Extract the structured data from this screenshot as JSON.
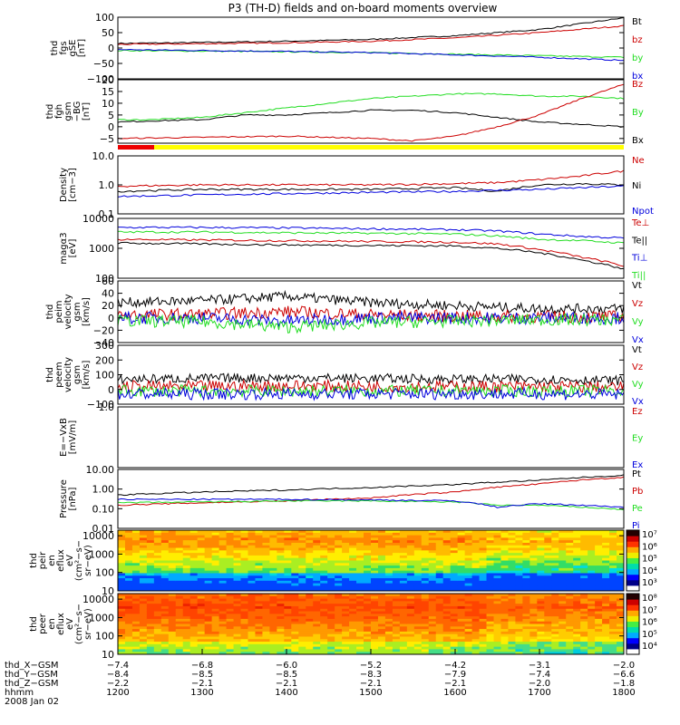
{
  "title": "P3 (TH-D) fields and on-board moments overview",
  "colors": {
    "black": "#000000",
    "red": "#cc0000",
    "green": "#22dd22",
    "blue": "#0000dd",
    "yellow": "#ffff00"
  },
  "chart_data": [
    {
      "type": "line",
      "panel": "fgs_gse",
      "ylabel_lines": [
        "thd",
        "fgs",
        "gSE",
        "[nT]"
      ],
      "ylim": [
        -100,
        100
      ],
      "yticks": [
        {
          "v": 100,
          "l": "100"
        },
        {
          "v": 50,
          "l": "50"
        },
        {
          "v": 0,
          "l": "0"
        },
        {
          "v": -50,
          "l": "−50"
        },
        {
          "v": -100,
          "l": "−100"
        }
      ],
      "legend": [
        {
          "label": "Bt",
          "color": "black"
        },
        {
          "label": "bz",
          "color": "red"
        },
        {
          "label": "by",
          "color": "green"
        },
        {
          "label": "bx",
          "color": "blue"
        }
      ],
      "series": [
        {
          "name": "Bt",
          "color": "black",
          "x": [
            1200,
            1300,
            1400,
            1500,
            1600,
            1700,
            1800
          ],
          "y": [
            15,
            18,
            22,
            28,
            40,
            60,
            98
          ]
        },
        {
          "name": "bz",
          "color": "red",
          "x": [
            1200,
            1300,
            1400,
            1500,
            1600,
            1700,
            1800
          ],
          "y": [
            12,
            14,
            17,
            22,
            33,
            50,
            72
          ]
        },
        {
          "name": "by",
          "color": "green",
          "x": [
            1200,
            1300,
            1400,
            1500,
            1600,
            1700,
            1800
          ],
          "y": [
            -8,
            -10,
            -12,
            -15,
            -20,
            -25,
            -30
          ]
        },
        {
          "name": "bx",
          "color": "blue",
          "x": [
            1200,
            1300,
            1400,
            1500,
            1600,
            1700,
            1800
          ],
          "y": [
            -5,
            -8,
            -11,
            -15,
            -22,
            -30,
            -40
          ]
        }
      ]
    },
    {
      "type": "line",
      "panel": "fgh_gsm",
      "ylabel_lines": [
        "thd",
        "fgh",
        "gsm",
        "−BG",
        "[nT]"
      ],
      "ylim": [
        -7,
        20
      ],
      "yticks": [
        {
          "v": 20,
          "l": "20"
        },
        {
          "v": 15,
          "l": "15"
        },
        {
          "v": 10,
          "l": "10"
        },
        {
          "v": 5,
          "l": "5"
        },
        {
          "v": 0,
          "l": "0"
        },
        {
          "v": -5,
          "l": "−5"
        }
      ],
      "legend": [
        {
          "label": "Bz",
          "color": "red"
        },
        {
          "label": "By",
          "color": "green"
        },
        {
          "label": "Bx",
          "color": "black"
        }
      ],
      "series": [
        {
          "name": "By",
          "color": "green",
          "x": [
            1200,
            1240,
            1300,
            1350,
            1400,
            1450,
            1500,
            1550,
            1600,
            1650,
            1700,
            1750,
            1800
          ],
          "y": [
            3,
            3,
            4,
            6,
            8,
            10,
            12,
            13,
            14,
            14,
            13,
            13,
            12
          ]
        },
        {
          "name": "Bx",
          "color": "black",
          "x": [
            1200,
            1240,
            1300,
            1350,
            1400,
            1450,
            1500,
            1550,
            1600,
            1650,
            1700,
            1750,
            1800
          ],
          "y": [
            2,
            2.5,
            3,
            5,
            5,
            6,
            7,
            7,
            6,
            4,
            2,
            1,
            0
          ]
        },
        {
          "name": "Bz",
          "color": "red",
          "x": [
            1200,
            1300,
            1400,
            1500,
            1550,
            1600,
            1650,
            1700,
            1750,
            1800
          ],
          "y": [
            -5,
            -4.5,
            -4,
            -5,
            -6,
            -4,
            0,
            5,
            12,
            18
          ]
        }
      ]
    },
    {
      "type": "line",
      "panel": "density",
      "ylabel_lines": [
        "Density",
        "[cm−3]"
      ],
      "scale": "log",
      "ylim": [
        0.1,
        10
      ],
      "yticks": [
        {
          "v": 10,
          "l": "10.0"
        },
        {
          "v": 1,
          "l": "1.0"
        },
        {
          "v": 0.1,
          "l": "0.1"
        }
      ],
      "legend": [
        {
          "label": "Ne",
          "color": "red"
        },
        {
          "label": "Ni",
          "color": "black"
        },
        {
          "label": "Npot",
          "color": "blue"
        }
      ],
      "series": [
        {
          "name": "Ne",
          "color": "red",
          "x": [
            1200,
            1300,
            1400,
            1500,
            1600,
            1650,
            1700,
            1750,
            1800
          ],
          "y": [
            0.9,
            1.0,
            1.0,
            1.0,
            1.1,
            1.2,
            1.5,
            2.0,
            3.0
          ]
        },
        {
          "name": "Ni",
          "color": "black",
          "x": [
            1200,
            1300,
            1400,
            1500,
            1600,
            1650,
            1700,
            1750,
            1800
          ],
          "y": [
            0.6,
            0.7,
            0.7,
            0.7,
            0.8,
            0.6,
            1.0,
            1.1,
            1.0
          ]
        },
        {
          "name": "Npot",
          "color": "blue",
          "x": [
            1200,
            1300,
            1400,
            1500,
            1600,
            1700,
            1800
          ],
          "y": [
            0.4,
            0.45,
            0.5,
            0.55,
            0.6,
            0.7,
            0.9
          ]
        }
      ]
    },
    {
      "type": "line",
      "panel": "temperature",
      "ylabel_lines": [
        "magα3",
        "[eV]"
      ],
      "scale": "log",
      "ylim": [
        100,
        10000
      ],
      "yticks": [
        {
          "v": 10000,
          "l": "10000"
        },
        {
          "v": 1000,
          "l": "1000"
        },
        {
          "v": 100,
          "l": "100"
        }
      ],
      "legend": [
        {
          "label": "Te⊥",
          "color": "red"
        },
        {
          "label": "Te||",
          "color": "black"
        },
        {
          "label": "Ti⊥",
          "color": "blue"
        },
        {
          "label": "Ti||",
          "color": "green"
        }
      ],
      "series": [
        {
          "name": "Ti⊥",
          "color": "blue",
          "x": [
            1200,
            1300,
            1400,
            1500,
            1600,
            1650,
            1700,
            1750,
            1800
          ],
          "y": [
            5000,
            5000,
            4800,
            4500,
            4200,
            3800,
            3000,
            2500,
            2200
          ]
        },
        {
          "name": "Ti||",
          "color": "green",
          "x": [
            1200,
            1300,
            1400,
            1500,
            1600,
            1650,
            1700,
            1750,
            1800
          ],
          "y": [
            3500,
            3500,
            3300,
            3200,
            3000,
            2600,
            2000,
            1800,
            1500
          ]
        },
        {
          "name": "Te⊥",
          "color": "red",
          "x": [
            1200,
            1300,
            1400,
            1500,
            1600,
            1650,
            1700,
            1750,
            1800
          ],
          "y": [
            2000,
            1900,
            1800,
            1700,
            1600,
            1400,
            900,
            500,
            250
          ]
        },
        {
          "name": "Te||",
          "color": "black",
          "x": [
            1200,
            1300,
            1400,
            1500,
            1600,
            1650,
            1700,
            1750,
            1800
          ],
          "y": [
            1500,
            1400,
            1300,
            1250,
            1200,
            1000,
            700,
            400,
            200
          ]
        }
      ]
    },
    {
      "type": "line",
      "panel": "peim_velocity",
      "ylabel_lines": [
        "thd",
        "peim",
        "velocity",
        "gsm",
        "[km/s]"
      ],
      "ylim": [
        -40,
        60
      ],
      "yticks": [
        {
          "v": 60,
          "l": "60"
        },
        {
          "v": 40,
          "l": "40"
        },
        {
          "v": 20,
          "l": "20"
        },
        {
          "v": 0,
          "l": "0"
        },
        {
          "v": -20,
          "l": "−20"
        },
        {
          "v": -40,
          "l": "−40"
        }
      ],
      "legend": [
        {
          "label": "Vt",
          "color": "black"
        },
        {
          "label": "Vz",
          "color": "red"
        },
        {
          "label": "Vy",
          "color": "green"
        },
        {
          "label": "Vx",
          "color": "blue"
        }
      ],
      "series": [
        {
          "name": "Vt",
          "color": "black",
          "x": [
            1200,
            1300,
            1400,
            1500,
            1600,
            1700,
            1800
          ],
          "y": [
            25,
            28,
            35,
            25,
            20,
            15,
            15
          ]
        },
        {
          "name": "Vz",
          "color": "red",
          "x": [
            1200,
            1300,
            1400,
            1500,
            1600,
            1700,
            1800
          ],
          "y": [
            5,
            6,
            10,
            5,
            3,
            2,
            2
          ]
        },
        {
          "name": "Vx",
          "color": "blue",
          "x": [
            1200,
            1300,
            1400,
            1500,
            1600,
            1700,
            1800
          ],
          "y": [
            0,
            0,
            -5,
            0,
            0,
            0,
            0
          ]
        },
        {
          "name": "Vy",
          "color": "green",
          "x": [
            1200,
            1300,
            1400,
            1500,
            1600,
            1700,
            1800
          ],
          "y": [
            -5,
            -6,
            -15,
            -8,
            -5,
            -3,
            -3
          ]
        }
      ]
    },
    {
      "type": "line",
      "panel": "peem_velocity",
      "ylabel_lines": [
        "thd",
        "peem",
        "velocity",
        "gsm",
        "[km/s]"
      ],
      "ylim": [
        -100,
        300
      ],
      "yticks": [
        {
          "v": 300,
          "l": "300"
        },
        {
          "v": 200,
          "l": "200"
        },
        {
          "v": 100,
          "l": "100"
        },
        {
          "v": 0,
          "l": "0"
        },
        {
          "v": -100,
          "l": "−100"
        }
      ],
      "legend": [
        {
          "label": "Vt",
          "color": "black"
        },
        {
          "label": "Vz",
          "color": "red"
        },
        {
          "label": "Vy",
          "color": "green"
        },
        {
          "label": "Vx",
          "color": "blue"
        }
      ],
      "series": [
        {
          "name": "Vt",
          "color": "black",
          "x": [
            1200,
            1300,
            1400,
            1500,
            1600,
            1700,
            1800
          ],
          "y": [
            70,
            75,
            80,
            75,
            70,
            70,
            60
          ]
        },
        {
          "name": "Vz",
          "color": "red",
          "x": [
            1200,
            1300,
            1400,
            1500,
            1600,
            1700,
            1800
          ],
          "y": [
            20,
            20,
            25,
            20,
            20,
            20,
            15
          ]
        },
        {
          "name": "Vy",
          "color": "green",
          "x": [
            1200,
            1300,
            1400,
            1500,
            1600,
            1700,
            1800
          ],
          "y": [
            -10,
            -10,
            -10,
            -10,
            -10,
            -10,
            -10
          ]
        },
        {
          "name": "Vx",
          "color": "blue",
          "x": [
            1200,
            1300,
            1400,
            1500,
            1600,
            1700,
            1800
          ],
          "y": [
            -30,
            -30,
            -30,
            -30,
            -30,
            -30,
            -35
          ]
        }
      ]
    },
    {
      "type": "line",
      "panel": "efield",
      "ylabel_lines": [
        "E=−VxB",
        "[mV/m]"
      ],
      "ylim": [
        -1,
        1
      ],
      "yticks": [
        {
          "v": 1,
          "l": "1.0"
        }
      ],
      "legend": [
        {
          "label": "Ez",
          "color": "red"
        },
        {
          "label": "Ey",
          "color": "green"
        },
        {
          "label": "Ex",
          "color": "blue"
        }
      ],
      "series": []
    },
    {
      "type": "line",
      "panel": "pressure",
      "ylabel_lines": [
        "Pressure",
        "[nPa]"
      ],
      "scale": "log",
      "ylim": [
        0.01,
        10
      ],
      "yticks": [
        {
          "v": 10,
          "l": "10.00"
        },
        {
          "v": 1,
          "l": "1.00"
        },
        {
          "v": 0.1,
          "l": "0.10"
        },
        {
          "v": 0.01,
          "l": "0.01"
        }
      ],
      "legend": [
        {
          "label": "Pt",
          "color": "black"
        },
        {
          "label": "Pb",
          "color": "red"
        },
        {
          "label": "Pe",
          "color": "green"
        },
        {
          "label": "Pi",
          "color": "blue"
        }
      ],
      "series": [
        {
          "name": "Pt",
          "color": "black",
          "x": [
            1200,
            1300,
            1400,
            1500,
            1600,
            1700,
            1800
          ],
          "y": [
            0.5,
            0.7,
            0.9,
            1.2,
            1.7,
            2.8,
            5.0
          ]
        },
        {
          "name": "Pb",
          "color": "red",
          "x": [
            1200,
            1300,
            1400,
            1500,
            1600,
            1700,
            1800
          ],
          "y": [
            0.15,
            0.2,
            0.25,
            0.35,
            0.7,
            1.8,
            4.0
          ]
        },
        {
          "name": "Pe",
          "color": "green",
          "x": [
            1200,
            1300,
            1400,
            1500,
            1600,
            1650,
            1700,
            1800
          ],
          "y": [
            0.2,
            0.22,
            0.25,
            0.25,
            0.22,
            0.15,
            0.15,
            0.09
          ]
        },
        {
          "name": "Pi",
          "color": "blue",
          "x": [
            1200,
            1300,
            1400,
            1500,
            1600,
            1650,
            1700,
            1800
          ],
          "y": [
            0.3,
            0.3,
            0.3,
            0.28,
            0.25,
            0.12,
            0.18,
            0.12
          ]
        }
      ]
    },
    {
      "type": "heatmap",
      "panel": "peir_eflux",
      "ylabel_lines": [
        "thd",
        "peir",
        "en",
        "eflux",
        "eV",
        "(cm²−s−",
        "sr−eV)"
      ],
      "yticks": [
        {
          "v": 10000,
          "l": "10000"
        },
        {
          "v": 1000,
          "l": "1000"
        },
        {
          "v": 100,
          "l": "100"
        },
        {
          "v": 10,
          "l": "10"
        }
      ],
      "colorbar_ticks": [
        "10⁷",
        "10⁶",
        "10⁵",
        "10⁴",
        "10³"
      ]
    },
    {
      "type": "heatmap",
      "panel": "peer_eflux",
      "ylabel_lines": [
        "thd",
        "peer",
        "en",
        "eflux",
        "eV",
        "(cm²−s−",
        "sr−eV)"
      ],
      "yticks": [
        {
          "v": 10000,
          "l": "10000"
        },
        {
          "v": 1000,
          "l": "1000"
        },
        {
          "v": 100,
          "l": "100"
        },
        {
          "v": 10,
          "l": "10"
        }
      ],
      "colorbar_ticks": [
        "10⁸",
        "10⁷",
        "10⁶",
        "10⁵",
        "10⁴"
      ]
    }
  ],
  "xaxis": {
    "rows": [
      {
        "label": "thd_X−GSM",
        "values": [
          "−7.4",
          "−6.8",
          "−6.0",
          "−5.2",
          "−4.2",
          "−3.1",
          "−2.0"
        ]
      },
      {
        "label": "thd_Y−GSM",
        "values": [
          "−8.4",
          "−8.5",
          "−8.5",
          "−8.3",
          "−7.9",
          "−7.4",
          "−6.6"
        ]
      },
      {
        "label": "thd_Z−GSM",
        "values": [
          "−2.2",
          "−2.1",
          "−2.1",
          "−2.1",
          "−2.1",
          "−2.0",
          "−1.8"
        ]
      },
      {
        "label": "hhmm",
        "values": [
          "1200",
          "1300",
          "1400",
          "1500",
          "1600",
          "1700",
          "1800"
        ]
      }
    ],
    "date": "2008 Jan 02"
  }
}
